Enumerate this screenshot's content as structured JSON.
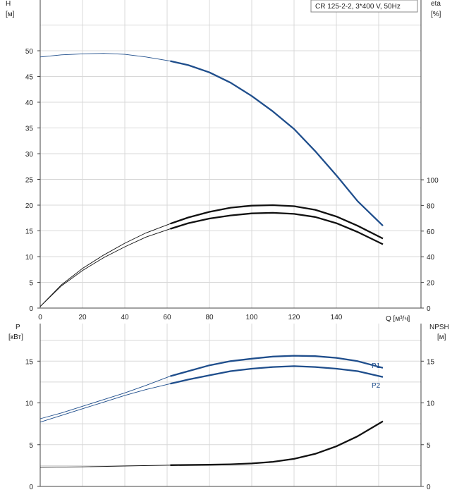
{
  "chart_data": [
    {
      "type": "line",
      "title": "CR 125-2-2, 3*400 V, 50Hz",
      "x_axis": {
        "label": "Q [м³/ч]",
        "ticks": [
          "0",
          "20",
          "40",
          "60",
          "80",
          "100",
          "120",
          "140"
        ],
        "range": [
          0,
          180
        ]
      },
      "y_left": {
        "label_top": "H",
        "label_unit": "[м]",
        "ticks": [
          "0",
          "5",
          "10",
          "15",
          "20",
          "25",
          "30",
          "35",
          "40",
          "45",
          "50"
        ],
        "range": [
          0,
          60
        ]
      },
      "y_right": {
        "label_top": "eta",
        "label_unit": "[%]",
        "ticks": [
          "0",
          "20",
          "40",
          "60",
          "80",
          "100"
        ],
        "range": [
          0,
          100
        ]
      },
      "grid": true,
      "series": [
        {
          "axis": "left",
          "color": "#1f4e8c",
          "x": [
            0,
            10,
            20,
            30,
            40,
            50,
            61.5,
            70,
            80,
            90,
            100,
            110,
            120,
            130,
            140,
            150,
            162
          ],
          "y": [
            48.8,
            49.2,
            49.4,
            49.5,
            49.3,
            48.8,
            48.0,
            47.2,
            45.8,
            43.8,
            41.2,
            38.2,
            34.8,
            30.5,
            25.8,
            20.8,
            16.0
          ]
        },
        {
          "axis": "left",
          "color": "#111111",
          "x": [
            0,
            10,
            20,
            30,
            40,
            50,
            61.5,
            70,
            80,
            90,
            100,
            110,
            120,
            130,
            140,
            150,
            162
          ],
          "y": [
            0.3,
            4.3,
            7.3,
            9.8,
            11.9,
            13.8,
            15.4,
            16.5,
            17.4,
            18.0,
            18.4,
            18.5,
            18.3,
            17.7,
            16.5,
            14.8,
            12.4
          ]
        },
        {
          "axis": "left",
          "color": "#111111",
          "x": [
            0,
            10,
            20,
            30,
            40,
            50,
            61.5,
            70,
            80,
            90,
            100,
            110,
            120,
            130,
            140,
            150,
            162
          ],
          "y": [
            0.3,
            4.5,
            7.7,
            10.3,
            12.6,
            14.6,
            16.4,
            17.6,
            18.7,
            19.5,
            19.9,
            20.0,
            19.8,
            19.1,
            17.8,
            16.0,
            13.5
          ]
        }
      ]
    },
    {
      "type": "line",
      "x_axis": {
        "range": [
          0,
          180
        ]
      },
      "y_left": {
        "label_top": "P",
        "label_unit": "[кВт]",
        "ticks": [
          "0",
          "5",
          "10",
          "15"
        ],
        "range": [
          0,
          19.5
        ]
      },
      "y_right": {
        "label_top": "NPSH",
        "label_unit": "[м]",
        "ticks": [
          "0",
          "5",
          "10",
          "15"
        ],
        "range": [
          0,
          19.5
        ]
      },
      "grid": true,
      "series": [
        {
          "name": "P1",
          "axis": "left",
          "color": "#1f4e8c",
          "x": [
            0,
            10,
            20,
            30,
            40,
            50,
            61.5,
            70,
            80,
            90,
            100,
            110,
            120,
            130,
            140,
            150,
            162
          ],
          "y": [
            8.1,
            8.8,
            9.6,
            10.4,
            11.2,
            12.1,
            13.2,
            13.8,
            14.5,
            15.0,
            15.3,
            15.55,
            15.65,
            15.6,
            15.4,
            15.0,
            14.2
          ]
        },
        {
          "name": "P2",
          "axis": "left",
          "color": "#1f4e8c",
          "x": [
            0,
            10,
            20,
            30,
            40,
            50,
            61.5,
            70,
            80,
            90,
            100,
            110,
            120,
            130,
            140,
            150,
            162
          ],
          "y": [
            7.7,
            8.5,
            9.3,
            10.1,
            10.9,
            11.6,
            12.3,
            12.8,
            13.3,
            13.8,
            14.1,
            14.3,
            14.4,
            14.3,
            14.1,
            13.8,
            13.1
          ]
        },
        {
          "axis": "right",
          "color": "#111111",
          "x": [
            0,
            20,
            40,
            61.5,
            80,
            90,
            100,
            110,
            120,
            130,
            140,
            150,
            162
          ],
          "y": [
            2.3,
            2.35,
            2.45,
            2.55,
            2.6,
            2.65,
            2.75,
            2.95,
            3.3,
            3.9,
            4.8,
            6.0,
            7.8
          ]
        }
      ]
    }
  ]
}
